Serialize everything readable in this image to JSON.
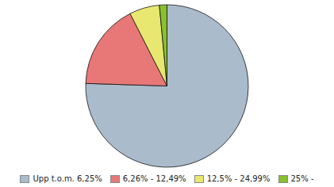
{
  "chart_data": {
    "type": "pie",
    "categories": [
      "Upp t.o.m. 6,25%",
      "6,26% - 12,49%",
      "12,5% - 24,99%",
      "25% -"
    ],
    "values": [
      75.5,
      17.0,
      6.0,
      1.5
    ],
    "colors": [
      "#aabbcc",
      "#e87878",
      "#e8e870",
      "#88c030"
    ],
    "legend": "bottom"
  }
}
